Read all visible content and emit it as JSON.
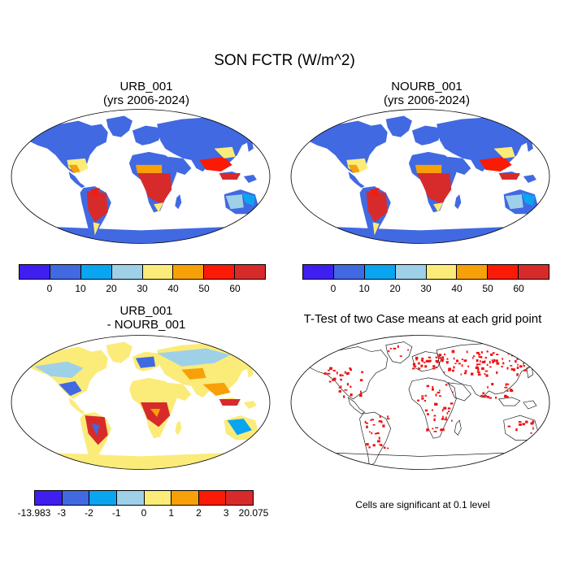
{
  "title": "SON FCTR (W/m^2)",
  "panels": [
    {
      "id": "urb",
      "title_line1": "URB_001",
      "title_line2": "(yrs 2006-2024)"
    },
    {
      "id": "nourb",
      "title_line1": "NOURB_001",
      "title_line2": "(yrs 2006-2024)"
    },
    {
      "id": "diff",
      "title_line1": "URB_001",
      "title_line2": "- NOURB_001"
    },
    {
      "id": "ttest",
      "title_line1": "T-Test of two Case means at each grid point",
      "title_line2": ""
    }
  ],
  "colorbar_abs": {
    "colors": [
      "#3e1ff0",
      "#4169e1",
      "#0aa5f0",
      "#9ed0e8",
      "#fbeb79",
      "#f7a008",
      "#fa1a06",
      "#d72b2b"
    ],
    "labels": [
      "0",
      "10",
      "20",
      "30",
      "40",
      "50",
      "60"
    ]
  },
  "colorbar_diff": {
    "colors": [
      "#3e1ff0",
      "#4169e1",
      "#0aa5f0",
      "#9ed0e8",
      "#fbeb79",
      "#f7a008",
      "#fa1a06",
      "#d72b2b"
    ],
    "labels": [
      "-13.983",
      "-3",
      "-2",
      "-1",
      "0",
      "1",
      "2",
      "3",
      "20.075"
    ]
  },
  "significance_note": "Cells are significant at 0.1 level",
  "significance_color": "#ee1111"
}
